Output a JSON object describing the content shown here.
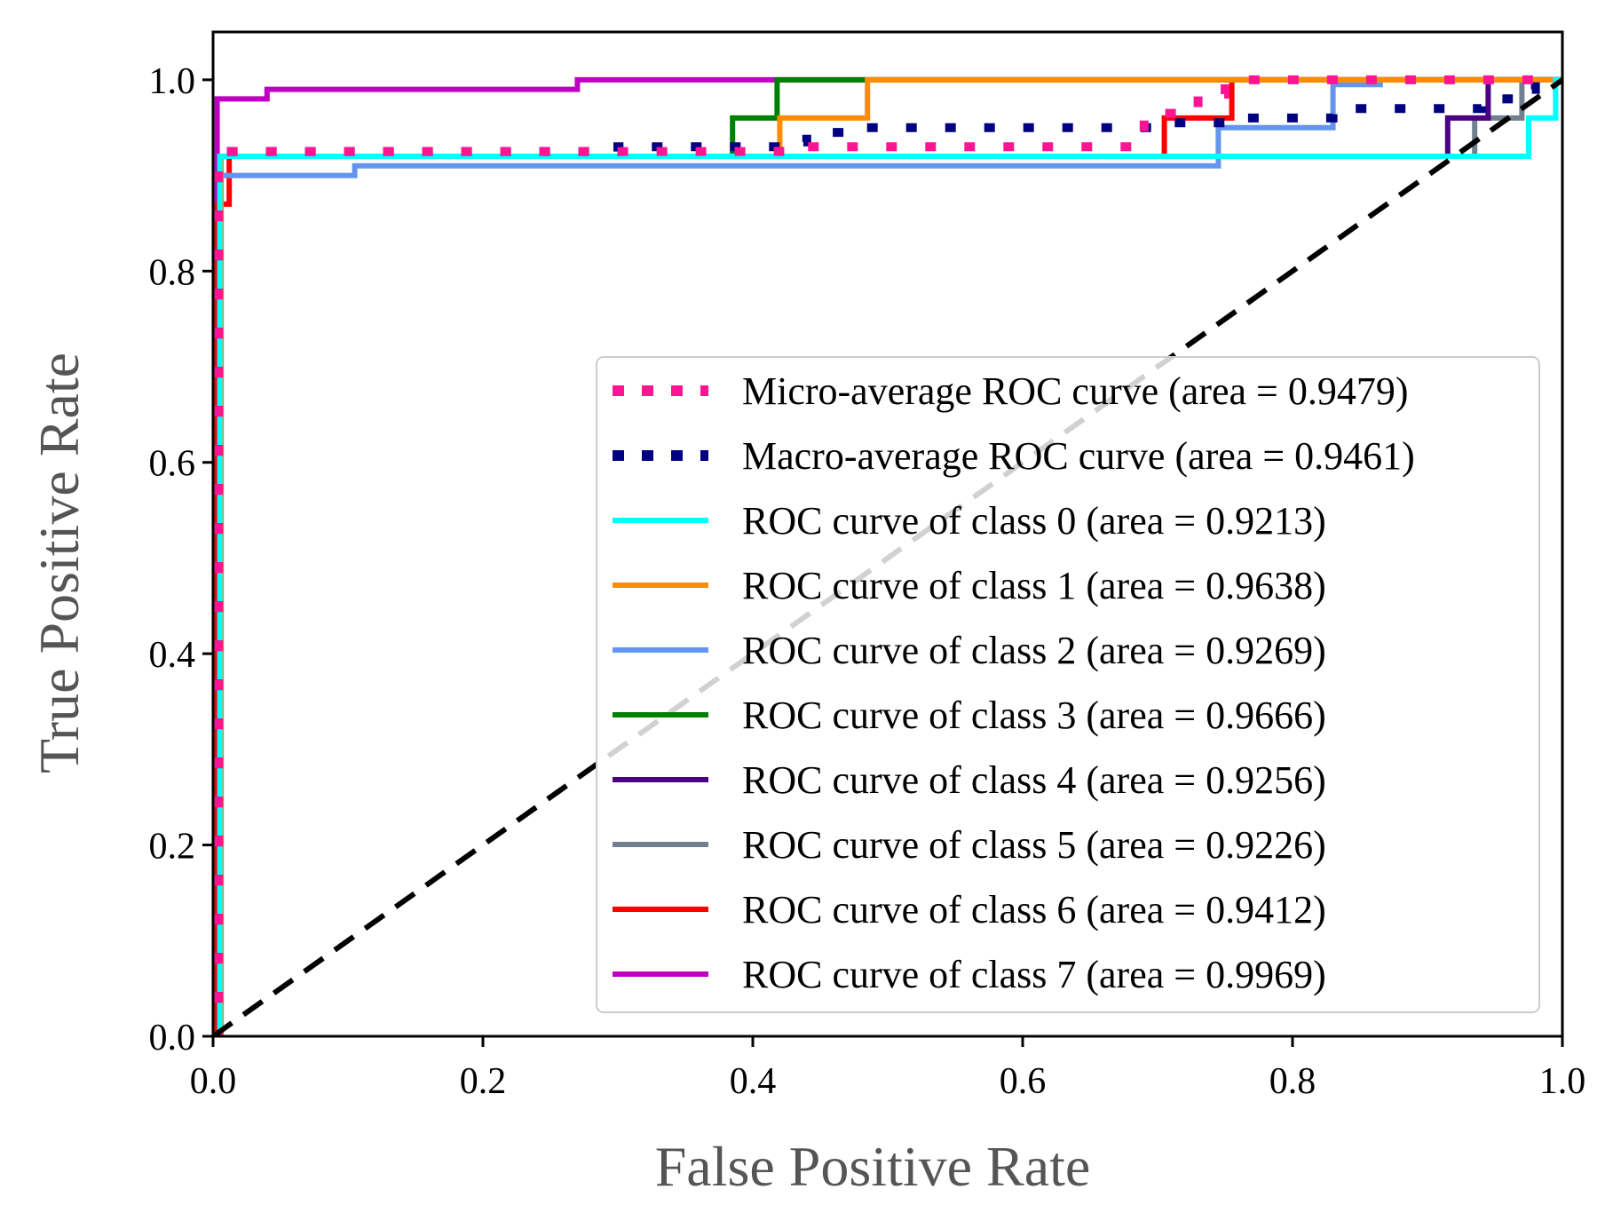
{
  "chart_data": {
    "type": "line",
    "xlabel": "False Positive Rate",
    "ylabel": "True Positive Rate",
    "xlim": [
      0.0,
      1.0
    ],
    "ylim": [
      0.0,
      1.05
    ],
    "x_ticks": [
      "0.0",
      "0.2",
      "0.4",
      "0.6",
      "0.8",
      "1.0"
    ],
    "y_ticks": [
      "0.0",
      "0.2",
      "0.4",
      "0.6",
      "0.8",
      "1.0"
    ],
    "grid": false,
    "legend_position": "lower-right",
    "series": [
      {
        "name": "Micro-average ROC curve (area = 0.9479)",
        "color": "#ff1493",
        "style": "dotted",
        "x": [
          0,
          0.004,
          0.004,
          0.42,
          0.42,
          0.69,
          0.69,
          0.73,
          0.73,
          0.75,
          0.75,
          1.0
        ],
        "y": [
          0,
          0,
          0.925,
          0.925,
          0.93,
          0.93,
          0.965,
          0.965,
          0.985,
          0.985,
          1.0,
          1.0
        ]
      },
      {
        "name": "Macro-average ROC curve (area = 0.9461)",
        "color": "#000080",
        "style": "dotted",
        "x": [
          0,
          0.004,
          0.004,
          0.3,
          0.3,
          0.42,
          0.42,
          0.44,
          0.44,
          0.47,
          0.47,
          0.7,
          0.7,
          0.75,
          0.75,
          0.83,
          0.83,
          0.94,
          0.94,
          0.96,
          0.96,
          0.98,
          0.98,
          1.0
        ],
        "y": [
          0,
          0,
          0.925,
          0.925,
          0.93,
          0.93,
          0.935,
          0.935,
          0.945,
          0.945,
          0.95,
          0.95,
          0.955,
          0.955,
          0.96,
          0.96,
          0.97,
          0.97,
          0.98,
          0.98,
          0.99,
          0.99,
          1.0,
          1.0
        ]
      },
      {
        "name": "ROC curve of class 0 (area = 0.9213)",
        "color": "#00ffff",
        "style": "solid",
        "x": [
          0,
          0.005,
          0.005,
          0.93,
          0.93,
          0.975,
          0.975,
          0.995,
          0.995,
          1.0
        ],
        "y": [
          0,
          0,
          0.92,
          0.92,
          0.92,
          0.92,
          0.96,
          0.96,
          1.0,
          1.0
        ]
      },
      {
        "name": "ROC curve of class 1 (area = 0.9638)",
        "color": "#ff8c00",
        "style": "solid",
        "x": [
          0,
          0.006,
          0.006,
          0.42,
          0.42,
          0.485,
          0.485,
          1.0
        ],
        "y": [
          0,
          0,
          0.92,
          0.92,
          0.96,
          0.96,
          1.0,
          1.0
        ]
      },
      {
        "name": "ROC curve of class 2 (area = 0.9269)",
        "color": "#6495ed",
        "style": "solid",
        "x": [
          0,
          0.006,
          0.006,
          0.105,
          0.105,
          0.745,
          0.745,
          0.83,
          0.83,
          0.865,
          0.865,
          1.0
        ],
        "y": [
          0,
          0,
          0.9,
          0.9,
          0.91,
          0.91,
          0.95,
          0.95,
          0.995,
          0.995,
          1.0,
          1.0
        ]
      },
      {
        "name": "ROC curve of class 3 (area = 0.9666)",
        "color": "#008000",
        "style": "solid",
        "x": [
          0,
          0.005,
          0.005,
          0.385,
          0.385,
          0.418,
          0.418,
          1.0
        ],
        "y": [
          0,
          0,
          0.92,
          0.92,
          0.96,
          0.96,
          1.0,
          1.0
        ]
      },
      {
        "name": "ROC curve of class 4 (area = 0.9256)",
        "color": "#4b0082",
        "style": "solid",
        "x": [
          0,
          0.005,
          0.005,
          0.915,
          0.915,
          0.945,
          0.945,
          1.0
        ],
        "y": [
          0,
          0,
          0.92,
          0.92,
          0.96,
          0.96,
          1.0,
          1.0
        ]
      },
      {
        "name": "ROC curve of class 5 (area = 0.9226)",
        "color": "#708090",
        "style": "solid",
        "x": [
          0,
          0.005,
          0.005,
          0.935,
          0.935,
          0.97,
          0.97,
          1.0
        ],
        "y": [
          0,
          0,
          0.92,
          0.92,
          0.96,
          0.96,
          1.0,
          1.0
        ]
      },
      {
        "name": "ROC curve of class 6 (area = 0.9412)",
        "color": "#ff0000",
        "style": "solid",
        "x": [
          0,
          0.003,
          0.003,
          0.012,
          0.012,
          0.705,
          0.705,
          0.755,
          0.755,
          1.0
        ],
        "y": [
          0,
          0,
          0.87,
          0.87,
          0.92,
          0.92,
          0.96,
          0.96,
          1.0,
          1.0
        ]
      },
      {
        "name": "ROC curve of class 7 (area = 0.9969)",
        "color": "#c000c0",
        "style": "solid",
        "x": [
          0,
          0.003,
          0.003,
          0.04,
          0.04,
          0.27,
          0.27,
          1.0
        ],
        "y": [
          0,
          0,
          0.98,
          0.98,
          0.99,
          0.99,
          1.0,
          1.0
        ]
      }
    ],
    "reference_line": {
      "x": [
        0,
        1
      ],
      "y": [
        0,
        1
      ],
      "color": "#000000",
      "style": "dashed"
    }
  }
}
